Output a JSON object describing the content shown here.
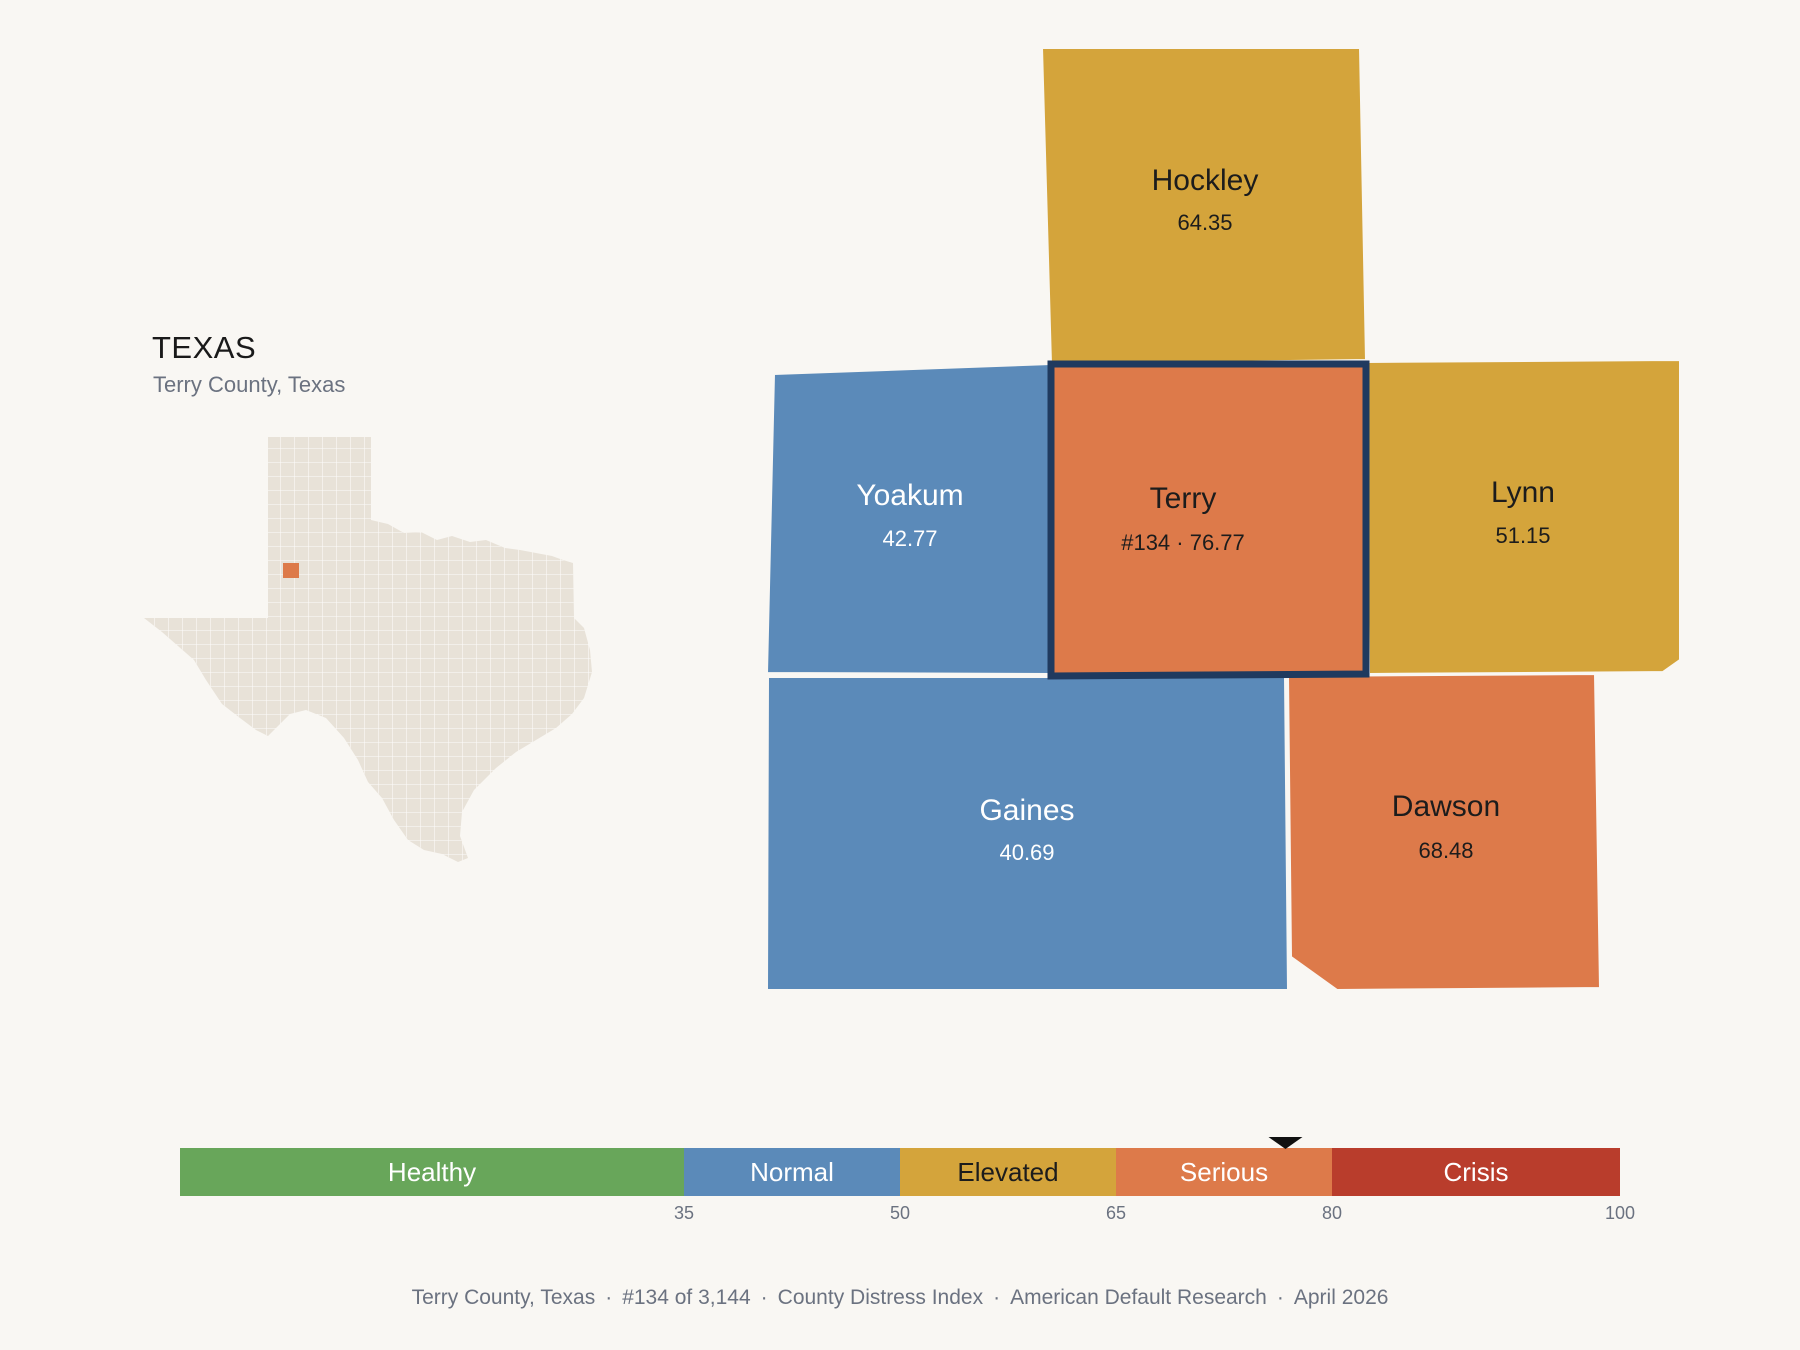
{
  "state": {
    "title": "TEXAS",
    "subtitle": "Terry County, Texas",
    "highlight_color": "#dd7a4a",
    "land_color": "#e8e2d8"
  },
  "counties": [
    {
      "id": "hockley",
      "name": "Hockley",
      "value": "64.35",
      "color": "#d4a43b",
      "text": "dark"
    },
    {
      "id": "yoakum",
      "name": "Yoakum",
      "value": "42.77",
      "color": "#5b8ab9",
      "text": "light"
    },
    {
      "id": "terry",
      "name": "Terry",
      "value": "#134 · 76.77",
      "color": "#dd7a4a",
      "text": "dark",
      "selected": true,
      "outline_color": "#1f3a5f"
    },
    {
      "id": "lynn",
      "name": "Lynn",
      "value": "51.15",
      "color": "#d4a43b",
      "text": "dark"
    },
    {
      "id": "gaines",
      "name": "Gaines",
      "value": "40.69",
      "color": "#5b8ab9",
      "text": "light"
    },
    {
      "id": "dawson",
      "name": "Dawson",
      "value": "68.48",
      "color": "#dd7a4a",
      "text": "dark"
    }
  ],
  "legend": {
    "min": 0,
    "max": 100,
    "marker_value": 76.77,
    "segments": [
      {
        "label": "Healthy",
        "from": 0,
        "to": 35,
        "color": "#68a65a",
        "text": "light"
      },
      {
        "label": "Normal",
        "from": 35,
        "to": 50,
        "color": "#5b8ab9",
        "text": "light"
      },
      {
        "label": "Elevated",
        "from": 50,
        "to": 65,
        "color": "#d4a43b",
        "text": "dark"
      },
      {
        "label": "Serious",
        "from": 65,
        "to": 80,
        "color": "#dd7a4a",
        "text": "light"
      },
      {
        "label": "Crisis",
        "from": 80,
        "to": 100,
        "color": "#b93d2c",
        "text": "light"
      }
    ],
    "ticks": [
      "35",
      "50",
      "65",
      "80",
      "100"
    ]
  },
  "footer": {
    "county": "Terry County, Texas",
    "rank": "#134 of 3,144",
    "index": "County Distress Index",
    "org": "American Default Research",
    "date": "April 2026"
  }
}
